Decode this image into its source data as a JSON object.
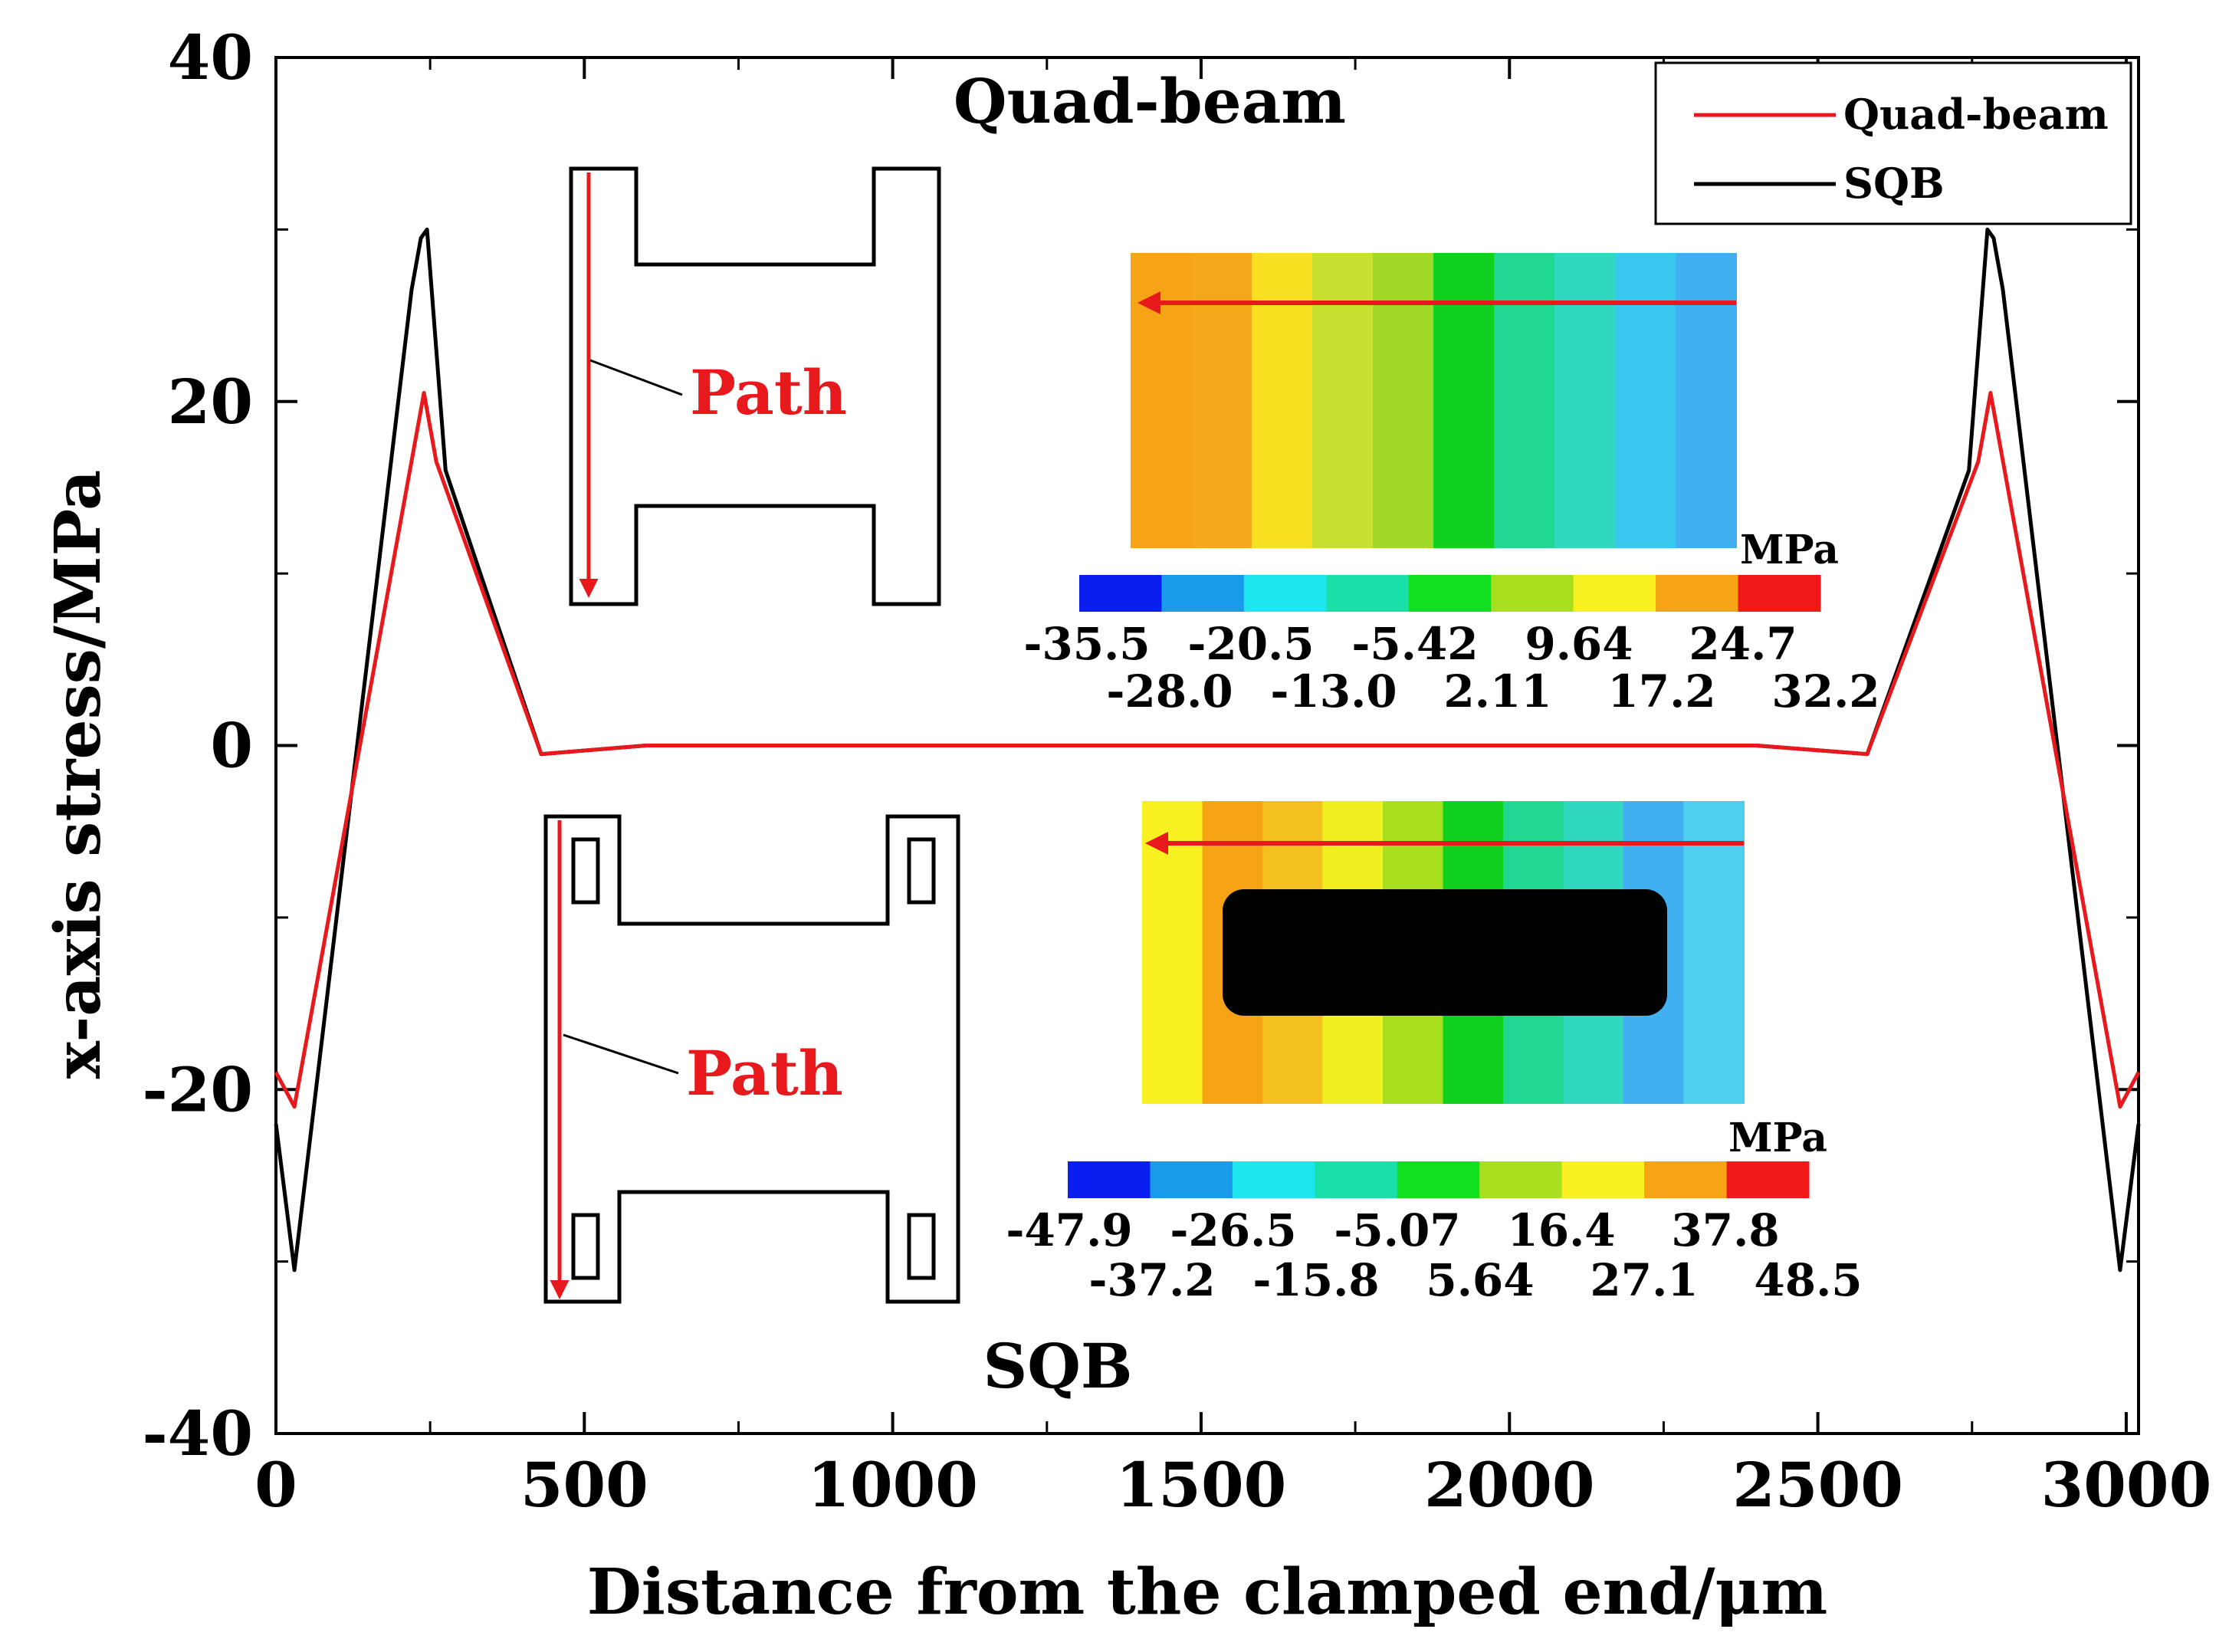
{
  "chart_data": {
    "type": "line",
    "title": "",
    "xlabel": "Distance from the clamped end/μm",
    "ylabel": "x-axis stress/MPa",
    "xlim": [
      0,
      3020
    ],
    "ylim": [
      -40,
      40
    ],
    "xticks": [
      0,
      500,
      1000,
      1500,
      2000,
      2500,
      3000
    ],
    "yticks": [
      -40,
      -20,
      0,
      20,
      40
    ],
    "xtick_labels": [
      "0",
      "500",
      "1000",
      "1500",
      "2000",
      "2500",
      "3000"
    ],
    "ytick_labels": [
      "-40",
      "-20",
      "0",
      "20",
      "40"
    ],
    "legend": {
      "position": "top-right",
      "entries": [
        "Quad-beam",
        "SQB"
      ]
    },
    "series": [
      {
        "name": "Quad-beam",
        "color": "#e8191c",
        "points": [
          [
            0,
            -19
          ],
          [
            30,
            -21
          ],
          [
            240,
            20.5
          ],
          [
            260,
            16.5
          ],
          [
            430,
            -0.5
          ],
          [
            600,
            0
          ],
          [
            2400,
            0
          ],
          [
            2580,
            -0.5
          ],
          [
            2760,
            16.5
          ],
          [
            2780,
            20.5
          ],
          [
            2990,
            -21
          ],
          [
            3020,
            -19
          ]
        ]
      },
      {
        "name": "SQB",
        "color": "#000000",
        "points": [
          [
            0,
            -22
          ],
          [
            30,
            -30.5
          ],
          [
            220,
            26.5
          ],
          [
            235,
            29.5
          ],
          [
            245,
            30
          ],
          [
            275,
            16
          ],
          [
            430,
            -0.5
          ],
          [
            600,
            0
          ],
          [
            2400,
            0
          ],
          [
            2580,
            -0.5
          ],
          [
            2745,
            16
          ],
          [
            2775,
            30
          ],
          [
            2785,
            29.5
          ],
          [
            2800,
            26.5
          ],
          [
            2990,
            -30.5
          ],
          [
            3020,
            -22
          ]
        ]
      }
    ],
    "annotations": {
      "quad_title": "Quad-beam",
      "sqb_title": "SQB",
      "path_label_top": "Path",
      "path_label_bottom": "Path"
    },
    "colorbar_top": {
      "unit": "MPa",
      "labels_row1": [
        "-35.5",
        "-20.5",
        "-5.42",
        "9.64",
        "24.7"
      ],
      "labels_row2": [
        "-28.0",
        "-13.0",
        "2.11",
        "17.2",
        "32.2"
      ],
      "colors": [
        "#0a1ef0",
        "#1a9bea",
        "#1ee6f0",
        "#18e0a8",
        "#10e020",
        "#a8e020",
        "#f8f020",
        "#f6a416",
        "#f01818"
      ]
    },
    "colorbar_bottom": {
      "unit": "MPa",
      "labels_row1": [
        "-47.9",
        "-26.5",
        "-5.07",
        "16.4",
        "37.8"
      ],
      "labels_row2": [
        "-37.2",
        "-15.8",
        "5.64",
        "27.1",
        "48.5"
      ],
      "colors": [
        "#0a1ef0",
        "#1a9bea",
        "#1ee6f0",
        "#18e0a8",
        "#10e020",
        "#a8e020",
        "#f8f020",
        "#f6a416",
        "#f01818"
      ]
    },
    "stress_map_top_bands": [
      "#f6a416",
      "#f2a818",
      "#f8e020",
      "#c8e030",
      "#a0d828",
      "#10d020",
      "#20d890",
      "#30d8c0",
      "#38c8f0",
      "#40b0f0"
    ],
    "stress_map_bottom_bands": [
      "#f8f020",
      "#f6a416",
      "#f4c020",
      "#f0f020",
      "#a8e020",
      "#10d020",
      "#20d890",
      "#30d8c0",
      "#40b0f0",
      "#50d0f0"
    ]
  }
}
